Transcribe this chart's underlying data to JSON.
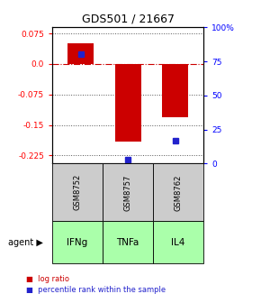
{
  "title": "GDS501 / 21667",
  "categories": [
    "GSM8752",
    "GSM8757",
    "GSM8762"
  ],
  "agents": [
    "IFNg",
    "TNFa",
    "IL4"
  ],
  "log_ratios": [
    0.05,
    -0.19,
    -0.13
  ],
  "percentile_ranks": [
    0.8,
    0.03,
    0.17
  ],
  "ylim_left": [
    -0.245,
    0.09
  ],
  "yticks_left": [
    0.075,
    0.0,
    -0.075,
    -0.15,
    -0.225
  ],
  "yticks_right_vals": [
    1.0,
    0.75,
    0.5,
    0.25,
    0.0
  ],
  "yticks_right_labels": [
    "100%",
    "75",
    "50",
    "25",
    "0"
  ],
  "bar_color": "#cc0000",
  "dot_color": "#2222cc",
  "sample_bg_color": "#cccccc",
  "agent_color": "#aaffaa",
  "zero_line_color": "#cc0000",
  "gridline_color": "#555555",
  "bar_width": 0.55
}
